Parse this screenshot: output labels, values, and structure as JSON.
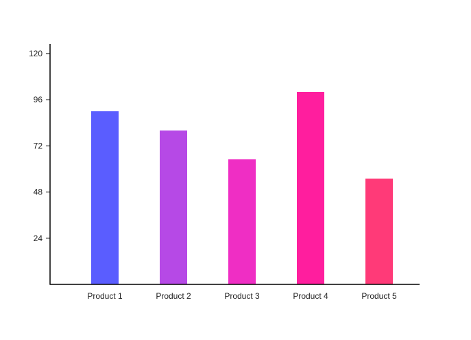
{
  "chart_data": {
    "type": "bar",
    "title": "",
    "xlabel": "",
    "ylabel": "",
    "categories": [
      "Product 1",
      "Product 2",
      "Product 3",
      "Product 4",
      "Product 5"
    ],
    "values": [
      90,
      80,
      65,
      100,
      55
    ],
    "colors": [
      "#5a5dff",
      "#b649e6",
      "#ef2ec4",
      "#ff1e9e",
      "#ff3a78"
    ],
    "ylim": [
      0,
      120
    ],
    "yticks": [
      24,
      48,
      72,
      96,
      120
    ],
    "grid": false,
    "legend": "none"
  }
}
